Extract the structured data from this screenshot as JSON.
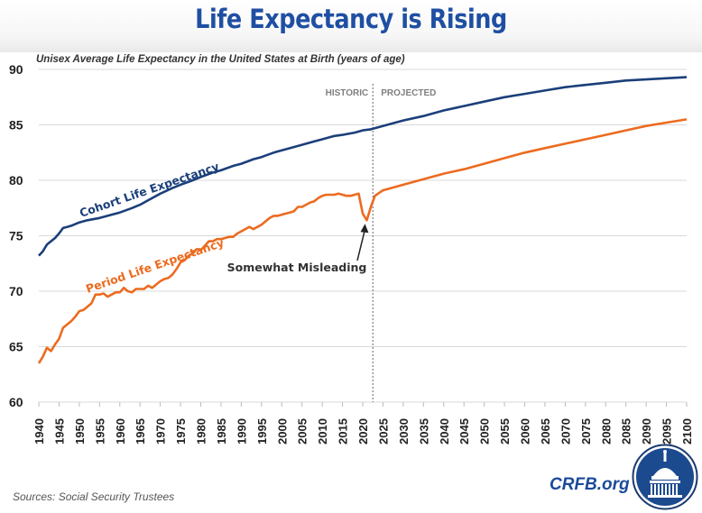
{
  "header": {
    "title": "Life Expectancy is Rising"
  },
  "footer": {
    "source": "Sources: Social Security Trustees",
    "brand": "CRFB.org",
    "logo_icon": "capitol-dome-icon"
  },
  "colors": {
    "title": "#1f4fa3",
    "cohort": "#1b3f7a",
    "period": "#ec6b1f",
    "grid": "#d9d9d9"
  },
  "chart_data": {
    "type": "line",
    "title": "Life Expectancy is Rising",
    "subtitle": "Unisex Average Life Expectancy in the United States at Birth (years of age)",
    "xlabel": "",
    "ylabel": "",
    "xlim": [
      1940,
      2100
    ],
    "ylim": [
      60,
      90
    ],
    "grid": true,
    "yticks": [
      "60",
      "65",
      "70",
      "75",
      "80",
      "85",
      "90"
    ],
    "xticks": [
      "1940",
      "1945",
      "1950",
      "1955",
      "1960",
      "1965",
      "1970",
      "1975",
      "1980",
      "1985",
      "1990",
      "1995",
      "2000",
      "2005",
      "2010",
      "2015",
      "2020",
      "2025",
      "2030",
      "2035",
      "2040",
      "2045",
      "2050",
      "2055",
      "2060",
      "2065",
      "2070",
      "2075",
      "2080",
      "2085",
      "2090",
      "2095",
      "2100"
    ],
    "divider": {
      "x": 2022.5,
      "left_label": "HISTORIC",
      "right_label": "PROJECTED"
    },
    "annotation": {
      "text": "Somewhat Misleading",
      "points_to_year": 2021,
      "points_to_value": 76.4
    },
    "series": [
      {
        "name": "Cohort Life Expectancy",
        "x": [
          1940,
          1941,
          1942,
          1943,
          1944,
          1945,
          1946,
          1947,
          1948,
          1950,
          1952,
          1955,
          1958,
          1960,
          1963,
          1965,
          1967,
          1970,
          1973,
          1975,
          1978,
          1980,
          1983,
          1985,
          1988,
          1990,
          1993,
          1995,
          1998,
          2000,
          2003,
          2005,
          2008,
          2010,
          2013,
          2015,
          2018,
          2020,
          2022,
          2025,
          2030,
          2035,
          2040,
          2045,
          2050,
          2055,
          2060,
          2065,
          2070,
          2075,
          2080,
          2085,
          2090,
          2095,
          2100
        ],
        "values": [
          73.2,
          73.6,
          74.2,
          74.5,
          74.8,
          75.2,
          75.7,
          75.8,
          75.9,
          76.2,
          76.4,
          76.6,
          76.9,
          77.1,
          77.5,
          77.8,
          78.2,
          78.8,
          79.3,
          79.6,
          80.0,
          80.3,
          80.7,
          80.9,
          81.3,
          81.5,
          81.9,
          82.1,
          82.5,
          82.7,
          83.0,
          83.2,
          83.5,
          83.7,
          84.0,
          84.1,
          84.3,
          84.5,
          84.6,
          84.9,
          85.4,
          85.8,
          86.3,
          86.7,
          87.1,
          87.5,
          87.8,
          88.1,
          88.4,
          88.6,
          88.8,
          89.0,
          89.1,
          89.2,
          89.3
        ],
        "label_text": "Cohort Life Expectancy"
      },
      {
        "name": "Period Life Expectancy",
        "x": [
          1940,
          1941,
          1942,
          1943,
          1944,
          1945,
          1946,
          1947,
          1948,
          1949,
          1950,
          1951,
          1952,
          1953,
          1954,
          1955,
          1956,
          1957,
          1958,
          1959,
          1960,
          1961,
          1962,
          1963,
          1964,
          1965,
          1966,
          1967,
          1968,
          1969,
          1970,
          1971,
          1972,
          1973,
          1974,
          1975,
          1976,
          1977,
          1978,
          1979,
          1980,
          1981,
          1982,
          1983,
          1984,
          1985,
          1986,
          1987,
          1988,
          1989,
          1990,
          1991,
          1992,
          1993,
          1994,
          1995,
          1996,
          1997,
          1998,
          1999,
          2000,
          2001,
          2002,
          2003,
          2004,
          2005,
          2006,
          2007,
          2008,
          2009,
          2010,
          2011,
          2012,
          2013,
          2014,
          2015,
          2016,
          2017,
          2018,
          2019,
          2020,
          2021,
          2022,
          2023,
          2025,
          2030,
          2035,
          2040,
          2045,
          2050,
          2055,
          2060,
          2065,
          2070,
          2075,
          2080,
          2085,
          2090,
          2095,
          2100
        ],
        "values": [
          63.5,
          64.1,
          64.9,
          64.6,
          65.2,
          65.7,
          66.7,
          67.0,
          67.3,
          67.7,
          68.2,
          68.3,
          68.6,
          68.9,
          69.7,
          69.7,
          69.8,
          69.5,
          69.7,
          69.9,
          69.9,
          70.3,
          70.0,
          69.9,
          70.2,
          70.2,
          70.2,
          70.5,
          70.3,
          70.6,
          70.9,
          71.1,
          71.2,
          71.5,
          72.0,
          72.6,
          72.8,
          73.2,
          73.4,
          73.8,
          73.7,
          74.1,
          74.5,
          74.5,
          74.7,
          74.7,
          74.8,
          74.9,
          74.9,
          75.2,
          75.4,
          75.6,
          75.8,
          75.6,
          75.8,
          76.0,
          76.3,
          76.6,
          76.8,
          76.8,
          76.9,
          77.0,
          77.1,
          77.2,
          77.6,
          77.6,
          77.8,
          78.0,
          78.1,
          78.4,
          78.6,
          78.7,
          78.7,
          78.7,
          78.8,
          78.7,
          78.6,
          78.6,
          78.7,
          78.8,
          77.0,
          76.4,
          77.6,
          78.6,
          79.1,
          79.6,
          80.1,
          80.6,
          81.0,
          81.5,
          82.0,
          82.5,
          82.9,
          83.3,
          83.7,
          84.1,
          84.5,
          84.9,
          85.2,
          85.5
        ],
        "label_text": "Period Life Expectancy"
      }
    ]
  }
}
